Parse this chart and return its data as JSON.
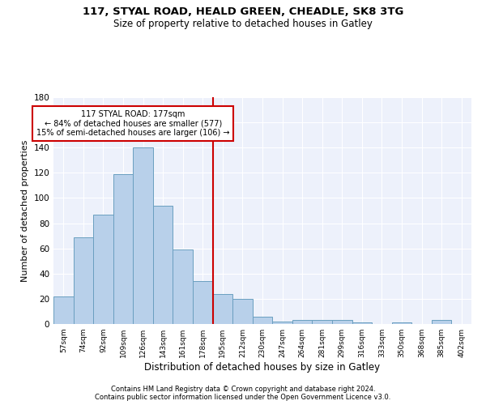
{
  "title1": "117, STYAL ROAD, HEALD GREEN, CHEADLE, SK8 3TG",
  "title2": "Size of property relative to detached houses in Gatley",
  "xlabel": "Distribution of detached houses by size in Gatley",
  "ylabel": "Number of detached properties",
  "categories": [
    "57sqm",
    "74sqm",
    "92sqm",
    "109sqm",
    "126sqm",
    "143sqm",
    "161sqm",
    "178sqm",
    "195sqm",
    "212sqm",
    "230sqm",
    "247sqm",
    "264sqm",
    "281sqm",
    "299sqm",
    "316sqm",
    "333sqm",
    "350sqm",
    "368sqm",
    "385sqm",
    "402sqm"
  ],
  "values": [
    22,
    69,
    87,
    119,
    140,
    94,
    59,
    34,
    24,
    20,
    6,
    2,
    3,
    3,
    3,
    1,
    0,
    1,
    0,
    3,
    0
  ],
  "bar_color": "#b8d0ea",
  "bar_edge_color": "#6a9fc0",
  "vline_x": 7.5,
  "vline_color": "#cc0000",
  "annotation_text": "117 STYAL ROAD: 177sqm\n← 84% of detached houses are smaller (577)\n15% of semi-detached houses are larger (106) →",
  "annotation_box_color": "#ffffff",
  "annotation_box_edge": "#cc0000",
  "ylim": [
    0,
    180
  ],
  "yticks": [
    0,
    20,
    40,
    60,
    80,
    100,
    120,
    140,
    160,
    180
  ],
  "background_color": "#edf1fb",
  "grid_color": "#ffffff",
  "footer1": "Contains HM Land Registry data © Crown copyright and database right 2024.",
  "footer2": "Contains public sector information licensed under the Open Government Licence v3.0."
}
